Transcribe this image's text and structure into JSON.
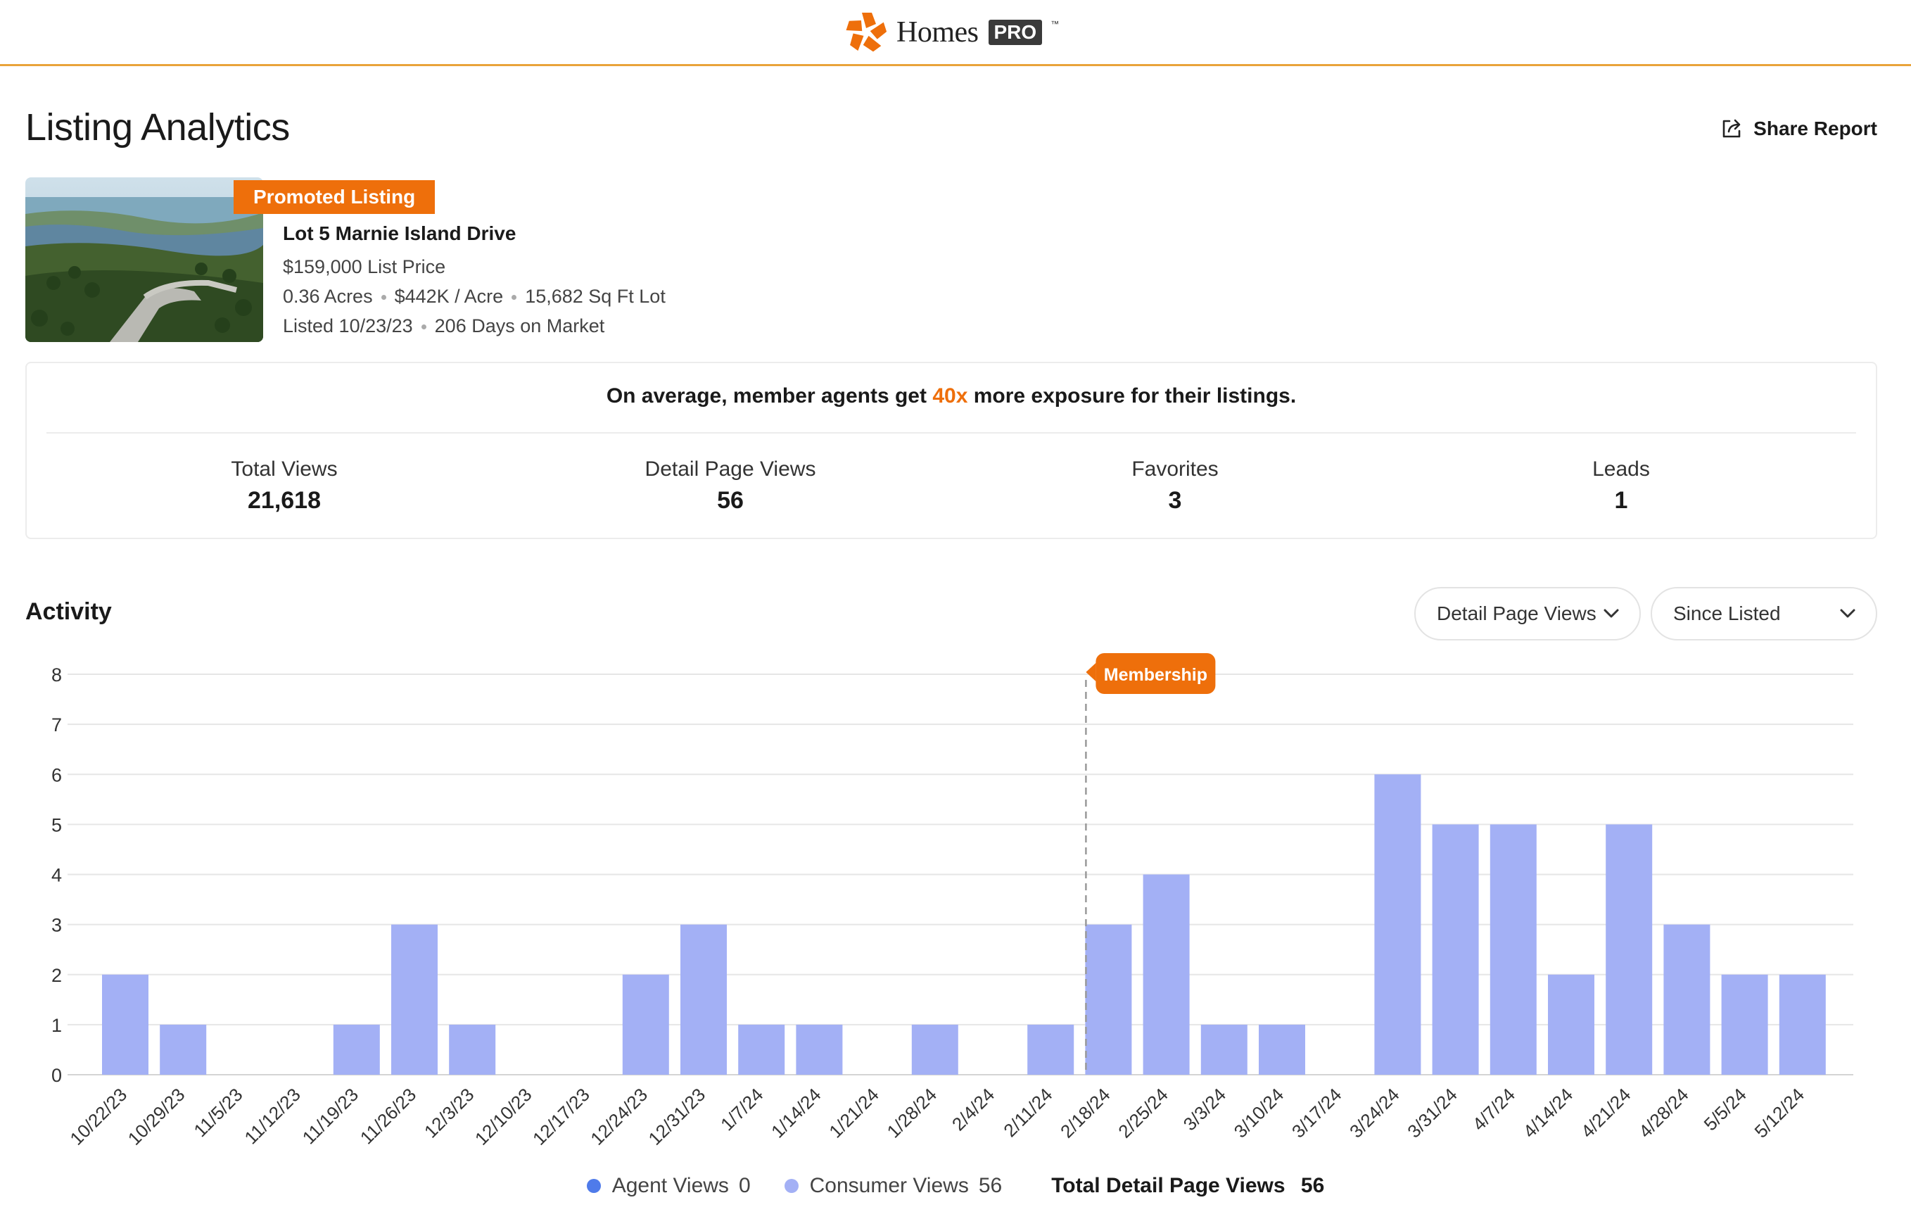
{
  "brand": {
    "name": "Homes",
    "badge": "PRO",
    "tm": "™"
  },
  "header": {
    "title": "Listing Analytics",
    "share_label": "Share Report"
  },
  "listing": {
    "badge": "Promoted Listing",
    "address": "Lot 5 Marnie Island Drive",
    "price": "$159,000 List Price",
    "acres": "0.36 Acres",
    "per_acre": "$442K / Acre",
    "lot_size": "15,682 Sq Ft Lot",
    "listed": "Listed 10/23/23",
    "days_on_market": "206 Days on Market"
  },
  "stats": {
    "exposure_pre": "On average, member agents get ",
    "exposure_highlight": "40x",
    "exposure_post": " more exposure for their listings.",
    "items": [
      {
        "label": "Total Views",
        "value": "21,618"
      },
      {
        "label": "Detail Page Views",
        "value": "56"
      },
      {
        "label": "Favorites",
        "value": "3"
      },
      {
        "label": "Leads",
        "value": "1"
      }
    ]
  },
  "activity": {
    "title": "Activity",
    "metric_select": "Detail Page Views",
    "range_select": "Since Listed"
  },
  "colors": {
    "accent": "#ee6f0b",
    "bar": "#a3b0f5",
    "agent_dot": "#4f7bea",
    "consumer_dot": "#a3b0f5"
  },
  "chart_data": {
    "type": "bar",
    "categories": [
      "10/22/23",
      "10/29/23",
      "11/5/23",
      "11/12/23",
      "11/19/23",
      "11/26/23",
      "12/3/23",
      "12/10/23",
      "12/17/23",
      "12/24/23",
      "12/31/23",
      "1/7/24",
      "1/14/24",
      "1/21/24",
      "1/28/24",
      "2/4/24",
      "2/11/24",
      "2/18/24",
      "2/25/24",
      "3/3/24",
      "3/10/24",
      "3/17/24",
      "3/24/24",
      "3/31/24",
      "4/7/24",
      "4/14/24",
      "4/21/24",
      "4/28/24",
      "5/5/24",
      "5/12/24"
    ],
    "series": [
      {
        "name": "Agent Views",
        "values": [
          0,
          0,
          0,
          0,
          0,
          0,
          0,
          0,
          0,
          0,
          0,
          0,
          0,
          0,
          0,
          0,
          0,
          0,
          0,
          0,
          0,
          0,
          0,
          0,
          0,
          0,
          0,
          0,
          0,
          0
        ]
      },
      {
        "name": "Consumer Views",
        "values": [
          2,
          1,
          0,
          0,
          1,
          3,
          1,
          0,
          0,
          2,
          3,
          1,
          1,
          0,
          1,
          0,
          1,
          3,
          4,
          1,
          1,
          0,
          6,
          5,
          5,
          2,
          5,
          3,
          2,
          2
        ]
      }
    ],
    "yticks": [
      "0",
      "1",
      "2",
      "3",
      "4",
      "5",
      "6",
      "7",
      "8"
    ],
    "ylim": [
      0,
      8
    ],
    "annotation": {
      "label": "Membership",
      "category": "2/18/24"
    },
    "legend": {
      "agent_label": "Agent Views",
      "agent_value": "0",
      "consumer_label": "Consumer Views",
      "consumer_value": "56",
      "total_label": "Total Detail Page Views",
      "total_value": "56"
    },
    "grid": true
  }
}
